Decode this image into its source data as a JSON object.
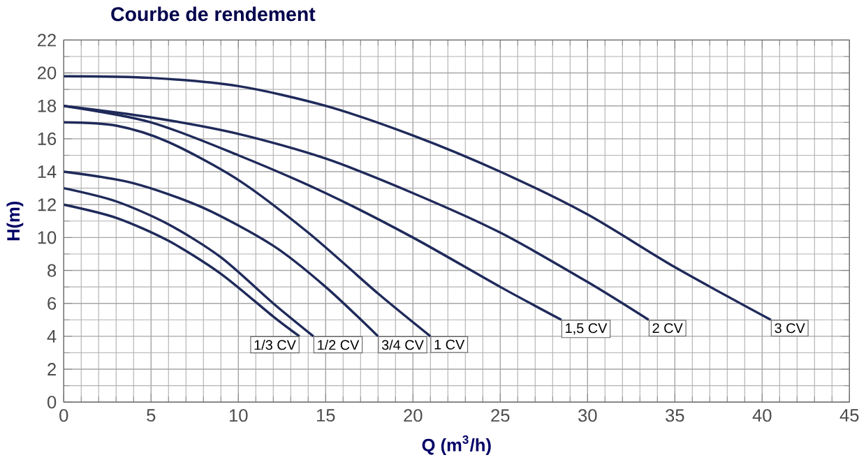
{
  "chart_data": {
    "type": "line",
    "title": "Courbe de rendement",
    "xlabel": "Q (m$^{3}$/h)",
    "ylabel": "H(m)",
    "xlim": [
      0,
      45
    ],
    "ylim": [
      0,
      22
    ],
    "xticks": [
      0,
      5,
      10,
      15,
      20,
      25,
      30,
      35,
      40,
      45
    ],
    "yticks": [
      0,
      2,
      4,
      6,
      8,
      10,
      12,
      14,
      16,
      18,
      20,
      22
    ],
    "grid": true,
    "legend": false,
    "marker": "none",
    "line_style": "solid",
    "series": [
      {
        "name": "1/3 CV",
        "color": "#1f2a5a",
        "x": [
          0,
          3,
          6,
          9,
          12,
          13.5
        ],
        "values": [
          12,
          11.2,
          9.8,
          7.8,
          5.2,
          4
        ]
      },
      {
        "name": "1/2 CV",
        "color": "#1f2a5a",
        "x": [
          0,
          3,
          6,
          9,
          12,
          14.3
        ],
        "values": [
          13,
          12.2,
          10.8,
          8.8,
          6,
          4
        ]
      },
      {
        "name": "3/4 CV",
        "color": "#1f2a5a",
        "x": [
          0,
          4,
          8,
          12,
          15,
          18
        ],
        "values": [
          14,
          13.3,
          11.8,
          9.5,
          7,
          4
        ]
      },
      {
        "name": "1 CV",
        "color": "#1f2a5a",
        "x": [
          0,
          3,
          6,
          10,
          14,
          18,
          21
        ],
        "values": [
          17,
          16.8,
          15.8,
          13.5,
          10.3,
          6.6,
          4
        ]
      },
      {
        "name": "1,5 CV",
        "color": "#1f2a5a",
        "x": [
          0,
          5,
          10,
          15,
          20,
          25,
          28.5
        ],
        "values": [
          18,
          17,
          15,
          12.7,
          10,
          7,
          5
        ]
      },
      {
        "name": "2 CV",
        "color": "#1f2a5a",
        "x": [
          0,
          5,
          10,
          15,
          20,
          25,
          30,
          33.5
        ],
        "values": [
          18,
          17.3,
          16.3,
          14.8,
          12.7,
          10.3,
          7.3,
          5
        ]
      },
      {
        "name": "3 CV",
        "color": "#1f2a5a",
        "x": [
          0,
          5,
          10,
          15,
          20,
          25,
          30,
          35,
          40.5
        ],
        "values": [
          19.8,
          19.7,
          19.2,
          18,
          16.2,
          14,
          11.4,
          8.2,
          5
        ]
      }
    ]
  }
}
